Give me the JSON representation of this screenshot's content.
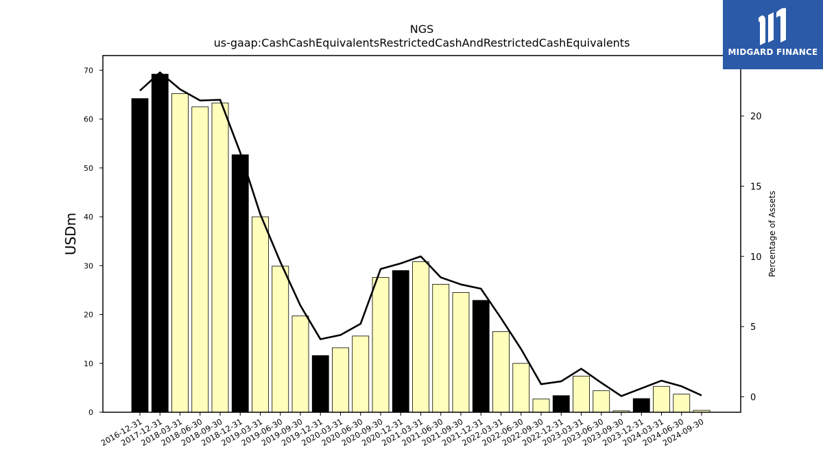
{
  "chart_data": {
    "type": "bar",
    "title": "NGS",
    "subtitle": "us-gaap:CashCashEquivalentsRestrictedCashAndRestrictedCashEquivalents",
    "ylabel": "USDm",
    "y2label": "Percentage of Assets",
    "ylim": [
      0,
      73
    ],
    "y2lim": [
      -1.1,
      24.3
    ],
    "yticks": [
      0,
      10,
      20,
      30,
      40,
      50,
      60,
      70
    ],
    "y2ticks": [
      0,
      5,
      10,
      15,
      20
    ],
    "categories": [
      "2016-12-31",
      "2017-12-31",
      "2018-03-31",
      "2018-06-30",
      "2018-09-30",
      "2018-12-31",
      "2019-03-31",
      "2019-06-30",
      "2019-09-30",
      "2019-12-31",
      "2020-03-31",
      "2020-06-30",
      "2020-09-30",
      "2020-12-31",
      "2021-03-31",
      "2021-06-30",
      "2021-09-30",
      "2021-12-31",
      "2022-03-31",
      "2022-06-30",
      "2022-09-30",
      "2022-12-31",
      "2023-03-31",
      "2023-06-30",
      "2023-09-30",
      "2023-12-31",
      "2024-03-31",
      "2024-06-30",
      "2024-09-30"
    ],
    "series": [
      {
        "values": [
          64.2,
          69.2,
          65.2,
          62.5,
          63.3,
          52.7,
          40.0,
          29.9,
          19.7,
          11.6,
          13.2,
          15.6,
          27.6,
          29.0,
          30.8,
          26.2,
          24.5,
          22.9,
          16.5,
          10.0,
          2.7,
          3.4,
          7.4,
          4.4,
          0.3,
          2.8,
          5.3,
          3.7,
          0.4
        ],
        "fill_annual": "#000000",
        "fill_quarterly": "#ffffbb",
        "annual_flags": [
          true,
          true,
          false,
          false,
          false,
          true,
          false,
          false,
          false,
          true,
          false,
          false,
          false,
          true,
          false,
          false,
          false,
          true,
          false,
          false,
          false,
          true,
          false,
          false,
          false,
          true,
          false,
          false,
          false
        ]
      },
      {
        "type": "line",
        "axis": "secondary",
        "color": "#000000",
        "values": [
          21.8,
          23.1,
          21.9,
          21.1,
          21.15,
          17.4,
          13.0,
          9.6,
          6.5,
          4.1,
          4.4,
          5.2,
          9.1,
          9.5,
          10.0,
          8.5,
          8.0,
          7.7,
          5.6,
          3.4,
          0.9,
          1.1,
          2.0,
          1.0,
          0.05,
          0.6,
          1.15,
          0.75,
          0.1
        ]
      }
    ],
    "grid": false
  },
  "logo": {
    "text": "MIDGARD FINANCE",
    "color": "#2b5aa8"
  }
}
